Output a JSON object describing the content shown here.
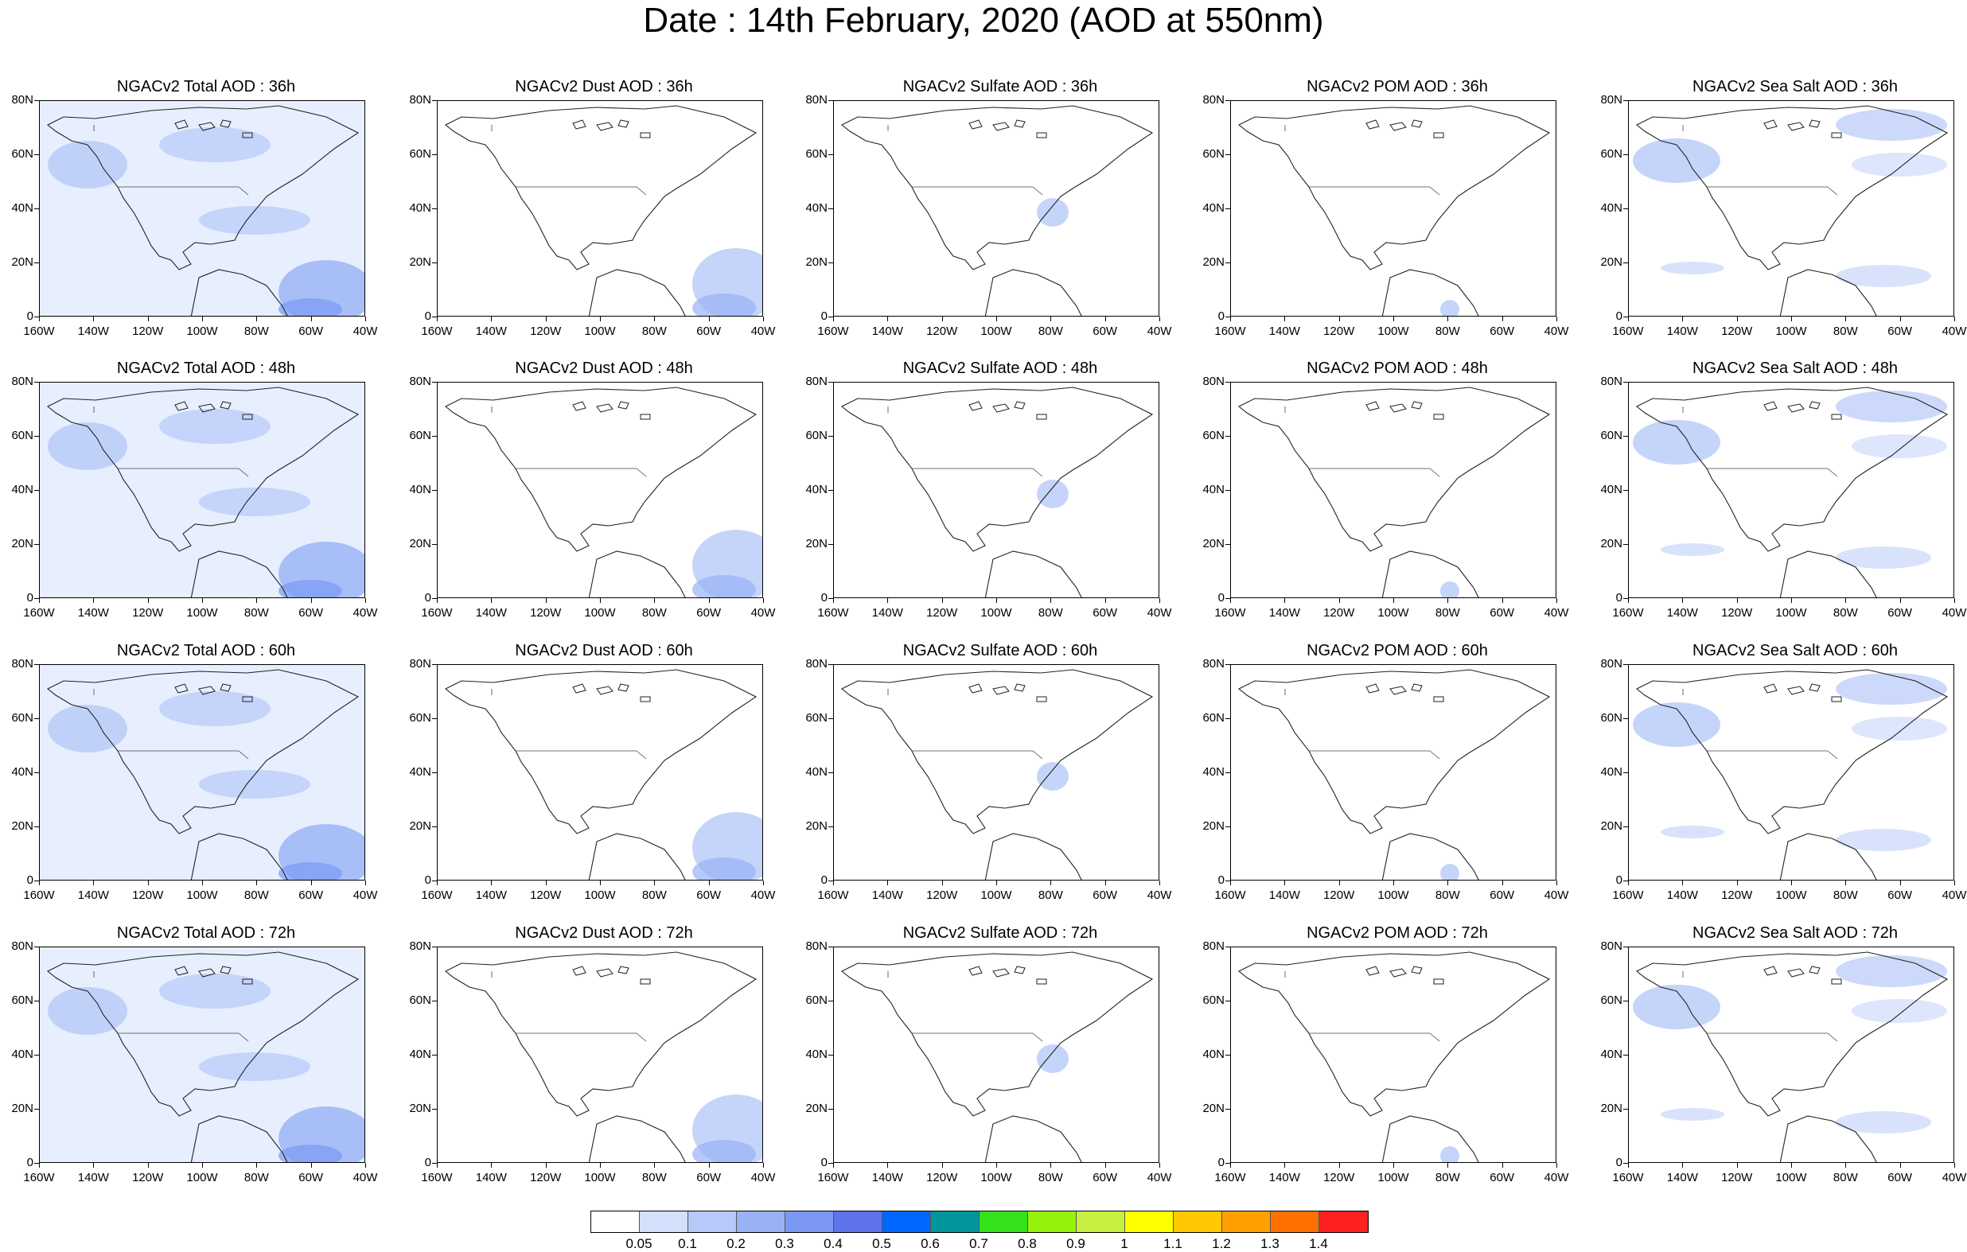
{
  "title": "Date : 14th February, 2020 (AOD at 550nm)",
  "lat_labels": [
    "80N",
    "60N",
    "40N",
    "20N",
    "0"
  ],
  "lon_labels": [
    "160W",
    "140W",
    "120W",
    "100W",
    "80W",
    "60W",
    "40W"
  ],
  "panels": [
    [
      "NGACv2 Total AOD : 36h",
      "NGACv2 Dust AOD : 36h",
      "NGACv2 Sulfate AOD : 36h",
      "NGACv2 POM AOD : 36h",
      "NGACv2 Sea Salt AOD : 36h"
    ],
    [
      "NGACv2 Total AOD : 48h",
      "NGACv2 Dust AOD : 48h",
      "NGACv2 Sulfate AOD : 48h",
      "NGACv2 POM AOD : 48h",
      "NGACv2 Sea Salt AOD : 48h"
    ],
    [
      "NGACv2 Total AOD : 60h",
      "NGACv2 Dust AOD : 60h",
      "NGACv2 Sulfate AOD : 60h",
      "NGACv2 POM AOD : 60h",
      "NGACv2 Sea Salt AOD : 60h"
    ],
    [
      "NGACv2 Total AOD : 72h",
      "NGACv2 Dust AOD : 72h",
      "NGACv2 Sulfate AOD : 72h",
      "NGACv2 POM AOD : 72h",
      "NGACv2 Sea Salt  AOD : 72h"
    ]
  ],
  "colorbar": {
    "labels": [
      "0.05",
      "0.1",
      "0.2",
      "0.3",
      "0.4",
      "0.5",
      "0.6",
      "0.7",
      "0.8",
      "0.9",
      "1",
      "1.1",
      "1.2",
      "1.3",
      "1.4"
    ],
    "colors": [
      "#ffffff",
      "#d4e0fb",
      "#b6c9f8",
      "#98b2f5",
      "#7b99f2",
      "#5f73ec",
      "#0068ff",
      "#00969a",
      "#33e21a",
      "#96f20a",
      "#c6f040",
      "#ffff00",
      "#ffc800",
      "#ffa000",
      "#ff7000",
      "#ff2020"
    ]
  }
}
